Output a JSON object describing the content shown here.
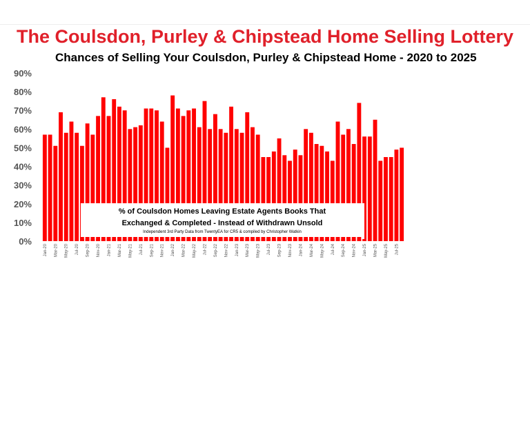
{
  "title": "The Coulsdon, Purley & Chipstead Home Selling Lottery",
  "subtitle": "Chances of Selling Your Coulsdon, Purley & Chipstead Home - 2020 to 2025",
  "colors": {
    "title": "#e0202a",
    "bar": "#ff0000",
    "axis_text": "#555555"
  },
  "chart_data": {
    "type": "bar",
    "ylim": [
      0,
      90
    ],
    "yticks": [
      "90%",
      "80%",
      "70%",
      "60%",
      "50%",
      "40%",
      "30%",
      "20%",
      "10%",
      "0%"
    ],
    "x_tick_labels": [
      "Jan-20",
      "Mar-20",
      "May-20",
      "Jul-20",
      "Sep-20",
      "Nov-20",
      "Jan-21",
      "Mar-21",
      "May-21",
      "Jul-21",
      "Sep-21",
      "Nov-21",
      "Jan-22",
      "Mar-22",
      "May-22",
      "Jul-22",
      "Sep-22",
      "Nov-22",
      "Jan-23",
      "Mar-23",
      "May-23",
      "Jul-23",
      "Sep-23",
      "Nov-23",
      "Jan-24",
      "Mar-24",
      "May-24",
      "Jul-24",
      "Sep-24",
      "Nov-24",
      "Jan-25",
      "Mar-25",
      "May-25",
      "Jul-25"
    ],
    "values": [
      57,
      57,
      51,
      69,
      58,
      64,
      58,
      51,
      63,
      57,
      67,
      77,
      67,
      76,
      72,
      70,
      60,
      61,
      62,
      71,
      71,
      70,
      64,
      50,
      78,
      71,
      67,
      70,
      71,
      61,
      75,
      60,
      68,
      60,
      58,
      72,
      60,
      58,
      69,
      61,
      57,
      45,
      45,
      48,
      55,
      46,
      43,
      49,
      46,
      60,
      58,
      52,
      51,
      48,
      43,
      64,
      57,
      60,
      52,
      74,
      56,
      56,
      65,
      43,
      45,
      45,
      49,
      50
    ],
    "annotation": {
      "line1": "% of Coulsdon Homes Leaving Estate Agents Books That",
      "line2": "Exchanged & Completed - Instead of Withdrawn Unsold",
      "line3": "Independent 3rd Party Data from TwentyEA for CR5 & compiled by Christopher Watkin"
    },
    "grid": false,
    "legend": "none"
  }
}
